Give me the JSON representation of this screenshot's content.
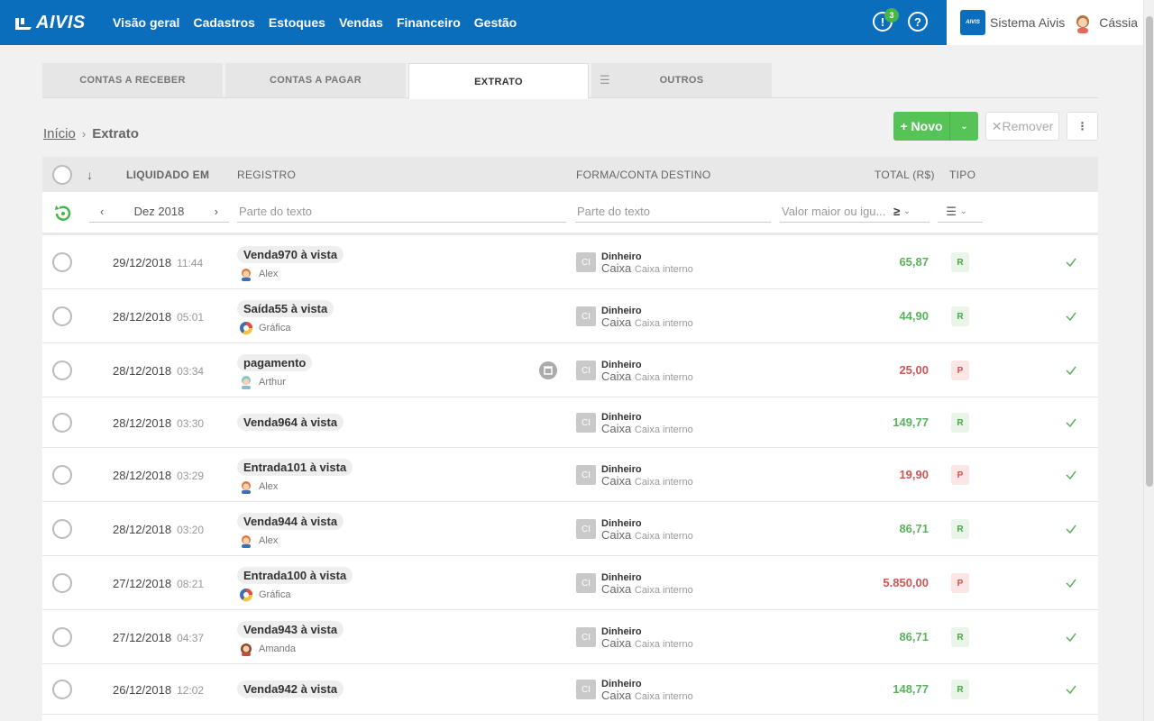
{
  "app": {
    "logo": "AIVIS",
    "system_name": "Sistema Aivis",
    "user_name": "Cássia",
    "notification_count": "3"
  },
  "nav": [
    "Visão geral",
    "Cadastros",
    "Estoques",
    "Vendas",
    "Financeiro",
    "Gestão"
  ],
  "tabs": [
    "CONTAS A RECEBER",
    "CONTAS A PAGAR",
    "EXTRATO",
    "OUTROS"
  ],
  "active_tab": "EXTRATO",
  "breadcrumb": {
    "home": "Início",
    "current": "Extrato"
  },
  "actions": {
    "novo": "Novo",
    "remover": "Remover"
  },
  "columns": {
    "liquidado": "LIQUIDADO EM",
    "registro": "REGISTRO",
    "forma": "FORMA/CONTA DESTINO",
    "total": "TOTAL (R$)",
    "tipo": "TIPO"
  },
  "filters": {
    "month": "Dez 2018",
    "registro_placeholder": "Parte do texto",
    "forma_placeholder": "Parte do texto",
    "valor_placeholder": "Valor maior ou igu...",
    "op": "≥"
  },
  "rows": [
    {
      "date": "29/12/2018",
      "time": "11:44",
      "title": "Venda970 à vista",
      "person": "Alex",
      "avatar": "alex",
      "conta": "Dinheiro",
      "caixa": "Caixa",
      "caixa_sub": "Caixa interno",
      "total": "65,87",
      "sign": "pos",
      "tipo": "R"
    },
    {
      "date": "28/12/2018",
      "time": "05:01",
      "title": "Saída55 à vista",
      "person": "Gráfica",
      "avatar": "grafica",
      "conta": "Dinheiro",
      "caixa": "Caixa",
      "caixa_sub": "Caixa interno",
      "total": "44,90",
      "sign": "pos",
      "tipo": "R"
    },
    {
      "date": "28/12/2018",
      "time": "03:34",
      "title": "pagamento",
      "person": "Arthur",
      "avatar": "arthur",
      "conta": "Dinheiro",
      "caixa": "Caixa",
      "caixa_sub": "Caixa interno",
      "total": "25,00",
      "sign": "neg",
      "tipo": "P",
      "doc": true
    },
    {
      "date": "28/12/2018",
      "time": "03:30",
      "title": "Venda964 à vista",
      "person": "",
      "avatar": "",
      "conta": "Dinheiro",
      "caixa": "Caixa",
      "caixa_sub": "Caixa interno",
      "total": "149,77",
      "sign": "pos",
      "tipo": "R"
    },
    {
      "date": "28/12/2018",
      "time": "03:29",
      "title": "Entrada101 à vista",
      "person": "Alex",
      "avatar": "alex",
      "conta": "Dinheiro",
      "caixa": "Caixa",
      "caixa_sub": "Caixa interno",
      "total": "19,90",
      "sign": "neg",
      "tipo": "P"
    },
    {
      "date": "28/12/2018",
      "time": "03:20",
      "title": "Venda944 à vista",
      "person": "Alex",
      "avatar": "alex",
      "conta": "Dinheiro",
      "caixa": "Caixa",
      "caixa_sub": "Caixa interno",
      "total": "86,71",
      "sign": "pos",
      "tipo": "R"
    },
    {
      "date": "27/12/2018",
      "time": "08:21",
      "title": "Entrada100 à vista",
      "person": "Gráfica",
      "avatar": "grafica",
      "conta": "Dinheiro",
      "caixa": "Caixa",
      "caixa_sub": "Caixa interno",
      "total": "5.850,00",
      "sign": "neg",
      "tipo": "P"
    },
    {
      "date": "27/12/2018",
      "time": "04:37",
      "title": "Venda943 à vista",
      "person": "Amanda",
      "avatar": "amanda",
      "conta": "Dinheiro",
      "caixa": "Caixa",
      "caixa_sub": "Caixa interno",
      "total": "86,71",
      "sign": "pos",
      "tipo": "R"
    },
    {
      "date": "26/12/2018",
      "time": "12:02",
      "title": "Venda942 à vista",
      "person": "",
      "avatar": "",
      "conta": "Dinheiro",
      "caixa": "Caixa",
      "caixa_sub": "Caixa interno",
      "total": "148,77",
      "sign": "pos",
      "tipo": "R"
    }
  ],
  "colors": {
    "primary": "#0a6ebd",
    "green": "#56c356",
    "red": "#d25353"
  }
}
